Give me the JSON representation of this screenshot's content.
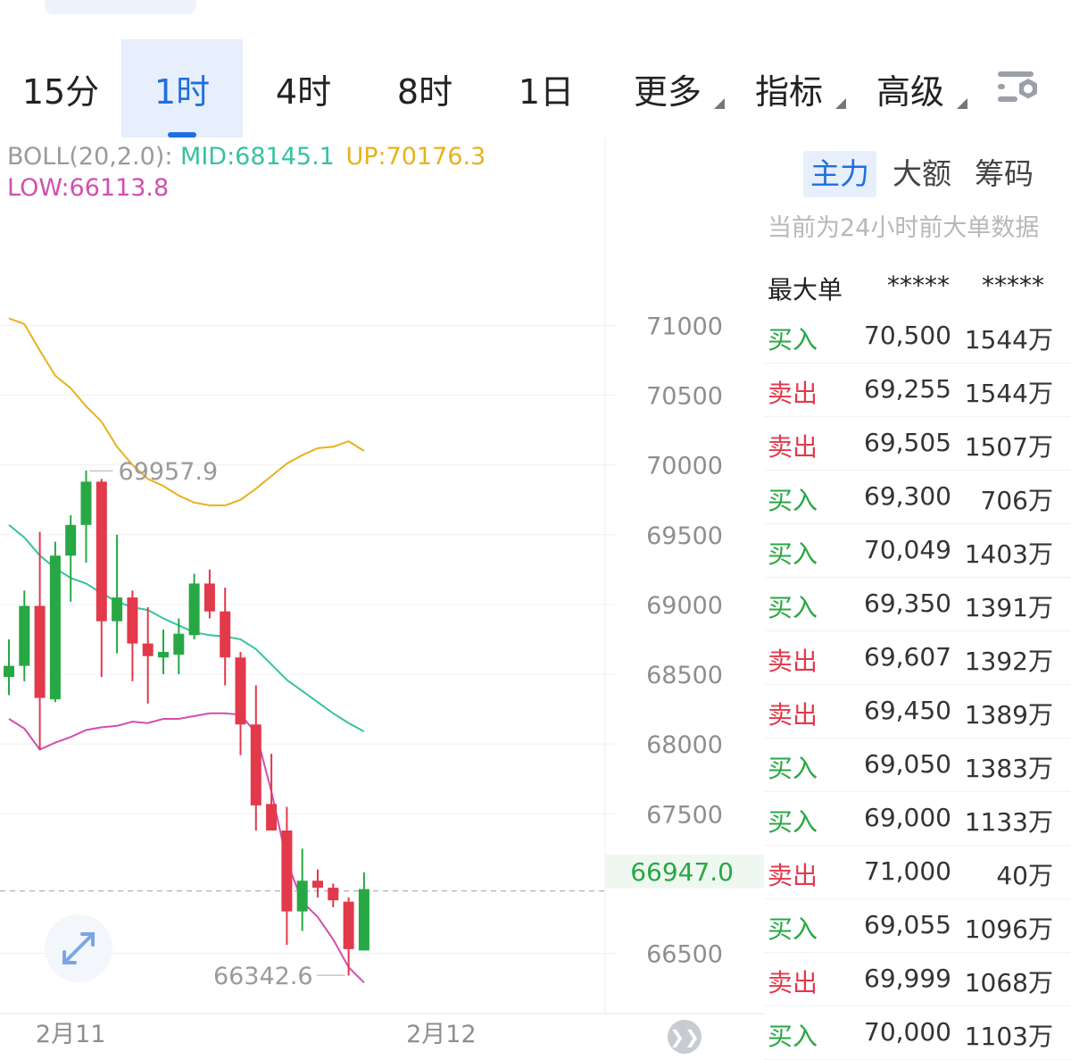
{
  "colors": {
    "up": "#27a844",
    "down": "#e2394b",
    "mid": "#36c2a2",
    "upper": "#e8b11c",
    "lower": "#d14fae",
    "accent": "#1f6fe0"
  },
  "tabs": [
    {
      "label": "15分",
      "active": false
    },
    {
      "label": "1时",
      "active": true
    },
    {
      "label": "4时",
      "active": false
    },
    {
      "label": "8时",
      "active": false
    },
    {
      "label": "1日",
      "active": false
    },
    {
      "label": "更多",
      "active": false,
      "dropdown": true
    },
    {
      "label": "指标",
      "active": false,
      "dropdown": true
    },
    {
      "label": "高级",
      "active": false,
      "dropdown": true
    }
  ],
  "settings_icon": "chart-settings-icon",
  "boll": {
    "name": "BOLL(20,2.0):",
    "mid": "MID:68145.1",
    "up": "UP:70176.3",
    "low": "LOW:66113.8"
  },
  "price_box": "66947.0",
  "expand_icon": "expand-arrows-icon",
  "next_icon": "skip-to-latest-icon",
  "chart_data": {
    "type": "candlestick",
    "ylim": [
      66100,
      71700
    ],
    "y_ticks": [
      "71000",
      "70500",
      "70000",
      "69500",
      "69000",
      "68500",
      "68000",
      "67500",
      "66500"
    ],
    "x_tick_labels": [
      {
        "label": "2月11",
        "index": 4
      },
      {
        "label": "2月12",
        "index": 28
      }
    ],
    "high_marker": {
      "label": "69957.9",
      "value": 69957.9,
      "index": 5
    },
    "low_marker": {
      "label": "66342.6",
      "value": 66342.6,
      "index": 22
    },
    "last_price": 66947.0,
    "candles": [
      {
        "o": 68480,
        "h": 68750,
        "l": 68350,
        "c": 68560
      },
      {
        "o": 68560,
        "h": 69100,
        "l": 68450,
        "c": 68990
      },
      {
        "o": 68990,
        "h": 69520,
        "l": 67960,
        "c": 68330
      },
      {
        "o": 68320,
        "h": 69450,
        "l": 68300,
        "c": 69350
      },
      {
        "o": 69350,
        "h": 69640,
        "l": 69020,
        "c": 69570
      },
      {
        "o": 69570,
        "h": 69960,
        "l": 69300,
        "c": 69880
      },
      {
        "o": 69880,
        "h": 69900,
        "l": 68480,
        "c": 68880
      },
      {
        "o": 68880,
        "h": 69500,
        "l": 68650,
        "c": 69050
      },
      {
        "o": 69050,
        "h": 69100,
        "l": 68450,
        "c": 68720
      },
      {
        "o": 68720,
        "h": 68980,
        "l": 68290,
        "c": 68630
      },
      {
        "o": 68620,
        "h": 68820,
        "l": 68500,
        "c": 68660
      },
      {
        "o": 68640,
        "h": 68900,
        "l": 68500,
        "c": 68790
      },
      {
        "o": 68780,
        "h": 69220,
        "l": 68750,
        "c": 69150
      },
      {
        "o": 69150,
        "h": 69250,
        "l": 68900,
        "c": 68950
      },
      {
        "o": 68950,
        "h": 69120,
        "l": 68420,
        "c": 68620
      },
      {
        "o": 68620,
        "h": 68660,
        "l": 67920,
        "c": 68140
      },
      {
        "o": 68140,
        "h": 68420,
        "l": 67380,
        "c": 67560
      },
      {
        "o": 67570,
        "h": 67930,
        "l": 67380,
        "c": 67380
      },
      {
        "o": 67380,
        "h": 67550,
        "l": 66560,
        "c": 66800
      },
      {
        "o": 66800,
        "h": 67250,
        "l": 66660,
        "c": 67020
      },
      {
        "o": 67020,
        "h": 67100,
        "l": 66900,
        "c": 66970
      },
      {
        "o": 66970,
        "h": 67000,
        "l": 66830,
        "c": 66880
      },
      {
        "o": 66870,
        "h": 66900,
        "l": 66340,
        "c": 66530
      },
      {
        "o": 66520,
        "h": 67080,
        "l": 66520,
        "c": 66960
      }
    ],
    "boll_upper": [
      71050,
      71010,
      70820,
      70640,
      70550,
      70420,
      70310,
      70130,
      70000,
      69900,
      69850,
      69780,
      69730,
      69710,
      69710,
      69750,
      69830,
      69920,
      70010,
      70070,
      70120,
      70130,
      70170,
      70100
    ],
    "boll_mid": [
      69570,
      69480,
      69350,
      69260,
      69190,
      69150,
      69080,
      69020,
      68980,
      68960,
      68900,
      68850,
      68800,
      68780,
      68770,
      68750,
      68680,
      68570,
      68460,
      68380,
      68300,
      68220,
      68150,
      68090
    ],
    "boll_lower": [
      68180,
      68110,
      67960,
      68010,
      68050,
      68100,
      68120,
      68130,
      68160,
      68150,
      68180,
      68180,
      68200,
      68220,
      68220,
      68210,
      68080,
      67660,
      67160,
      66870,
      66760,
      66600,
      66400,
      66290
    ]
  },
  "panel": {
    "tabs": [
      {
        "label": "主力",
        "active": true
      },
      {
        "label": "大额",
        "active": false
      },
      {
        "label": "筹码",
        "active": false
      }
    ],
    "note": "当前为24小时前大单数据",
    "header": {
      "label": "最大单",
      "col1": "*****",
      "col2": "*****"
    },
    "rows": [
      {
        "side": "买入",
        "dir": "buy",
        "price": "70,500",
        "amount": "1544万"
      },
      {
        "side": "卖出",
        "dir": "sell",
        "price": "69,255",
        "amount": "1544万"
      },
      {
        "side": "卖出",
        "dir": "sell",
        "price": "69,505",
        "amount": "1507万"
      },
      {
        "side": "买入",
        "dir": "buy",
        "price": "69,300",
        "amount": "706万"
      },
      {
        "side": "买入",
        "dir": "buy",
        "price": "70,049",
        "amount": "1403万"
      },
      {
        "side": "买入",
        "dir": "buy",
        "price": "69,350",
        "amount": "1391万"
      },
      {
        "side": "卖出",
        "dir": "sell",
        "price": "69,607",
        "amount": "1392万"
      },
      {
        "side": "卖出",
        "dir": "sell",
        "price": "69,450",
        "amount": "1389万"
      },
      {
        "side": "买入",
        "dir": "buy",
        "price": "69,050",
        "amount": "1383万"
      },
      {
        "side": "买入",
        "dir": "buy",
        "price": "69,000",
        "amount": "1133万"
      },
      {
        "side": "卖出",
        "dir": "sell",
        "price": "71,000",
        "amount": "40万"
      },
      {
        "side": "买入",
        "dir": "buy",
        "price": "69,055",
        "amount": "1096万"
      },
      {
        "side": "卖出",
        "dir": "sell",
        "price": "69,999",
        "amount": "1068万"
      },
      {
        "side": "买入",
        "dir": "buy",
        "price": "70,000",
        "amount": "1103万"
      }
    ]
  }
}
